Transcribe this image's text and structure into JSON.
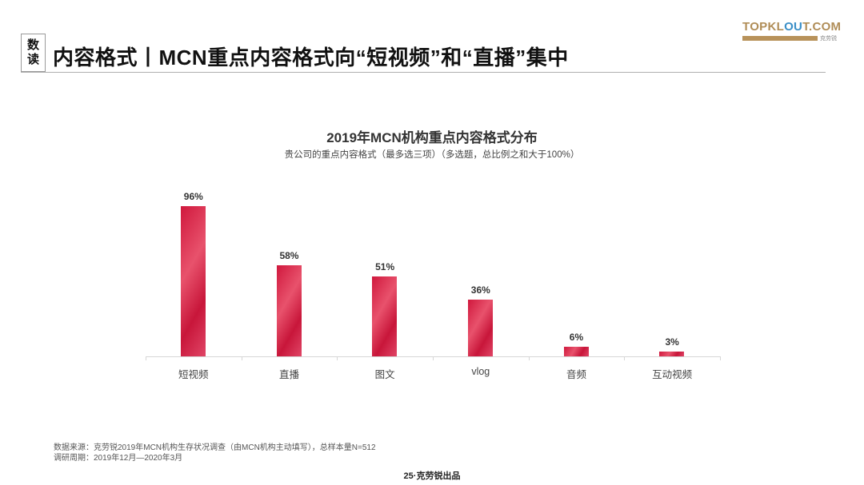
{
  "header": {
    "badge_line1": "数",
    "badge_line2": "读",
    "title": "内容格式丨MCN重点内容格式向“短视频”和“直播”集中"
  },
  "logo": {
    "text_part1": "TOPKL",
    "text_part2": "OU",
    "text_part3": "T.COM",
    "brand_cn": "克劳锐"
  },
  "chart_data": {
    "type": "bar",
    "title": "2019年MCN机构重点内容格式分布",
    "subtitle": "贵公司的重点内容格式（最多选三项）（多选题，总比例之和大于100%）",
    "categories": [
      "短视频",
      "直播",
      "图文",
      "vlog",
      "音频",
      "互动视频"
    ],
    "values": [
      96,
      58,
      51,
      36,
      6,
      3
    ],
    "labels": [
      "96%",
      "58%",
      "51%",
      "36%",
      "6%",
      "3%"
    ],
    "xlabel": "",
    "ylabel": "",
    "ylim": [
      0,
      100
    ],
    "unit": "%",
    "grid": false,
    "legend": null,
    "bar_color": "#d0183d"
  },
  "footnote": {
    "source": "数据来源：克劳锐2019年MCN机构生存状况调查（由MCN机构主动填写），总样本量N=512",
    "period": "调研周期：2019年12月—2020年3月"
  },
  "footer": {
    "page": "25·克劳锐出品"
  }
}
